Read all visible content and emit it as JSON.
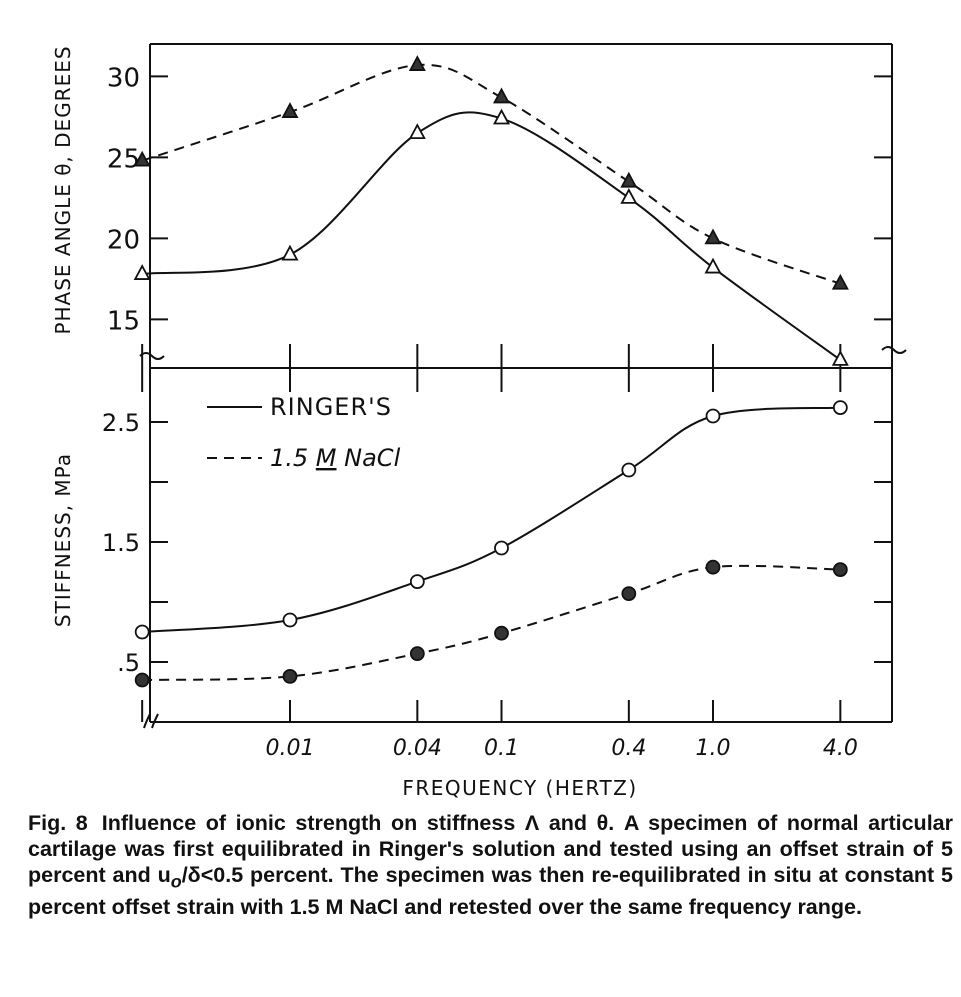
{
  "chart_data": [
    {
      "type": "line",
      "ylabel": "PHASE ANGLE θ, DEGREES",
      "ylim": [
        12,
        32
      ],
      "yticks": [
        "15",
        "20",
        "25",
        "30"
      ],
      "x": [
        0.002,
        0.01,
        0.04,
        0.1,
        0.4,
        1.0,
        4.0
      ],
      "series": [
        {
          "name": "RINGER'S",
          "style": "solid",
          "marker": "open-triangle",
          "values": [
            17.8,
            19.0,
            26.5,
            27.4,
            22.5,
            18.2,
            12.5
          ]
        },
        {
          "name": "1.5 M NaCl",
          "style": "dashed",
          "marker": "filled-triangle",
          "values": [
            24.8,
            27.8,
            30.7,
            28.7,
            23.5,
            20.0,
            17.2
          ]
        }
      ]
    },
    {
      "type": "line",
      "ylabel": "STIFFNESS, MPa",
      "xlabel": "FREQUENCY (HERTZ)",
      "ylim": [
        0,
        2.95
      ],
      "yticks": [
        "2.5",
        "1.5",
        ".5"
      ],
      "xtick_labels": [
        "0.01",
        "0.04",
        "0.1",
        "0.4",
        "1.0",
        "4.0"
      ],
      "x": [
        0.002,
        0.01,
        0.04,
        0.1,
        0.4,
        1.0,
        4.0
      ],
      "legend": {
        "placement": "top-left",
        "entries": [
          "RINGER'S",
          "1.5 M NaCl"
        ]
      },
      "series": [
        {
          "name": "RINGER'S",
          "style": "solid",
          "marker": "open-circle",
          "values": [
            0.75,
            0.85,
            1.17,
            1.45,
            2.1,
            2.55,
            2.62
          ]
        },
        {
          "name": "1.5 M NaCl",
          "style": "dashed",
          "marker": "filled-circle",
          "values": [
            0.35,
            0.38,
            0.57,
            0.74,
            1.07,
            1.29,
            1.27
          ]
        }
      ]
    }
  ],
  "legend": {
    "ringer": "RINGER'S",
    "nacl_pre": "1.5 ",
    "nacl_m": "M",
    "nacl_post": " NaCl"
  },
  "caption": {
    "label": "Fig. 8",
    "text": "Influence of ionic strength on stiffness Λ and θ. A specimen of normal articular cartilage was first equilibrated in Ringer's solution and tested using an offset strain of 5 percent and u",
    "sub": "o",
    "text2": "/δ<0.5 percent. The specimen was then re-equilibrated in situ at constant 5 percent offset strain with 1.5 M NaCl and retested over the same frequency range."
  }
}
